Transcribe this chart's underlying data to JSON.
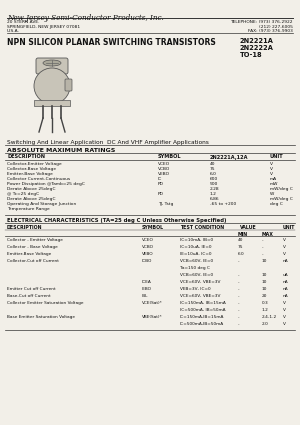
{
  "bg_color": "#f2efe8",
  "company_name": "New Jersey Semi-Conductor Products, Inc.",
  "address_line1": "20 STERN AVE.",
  "address_line2": "SPRINGFIELD, NEW JERSEY 07081",
  "address_line3": "U.S.A.",
  "phone_line1": "TELEPHONE: (973) 376-2922",
  "phone_line2": "(212) 227-6005",
  "phone_line3": "FAX: (973) 376-9903",
  "title": "NPN SILICON PLANAR SWITCHING TRANSISTORS",
  "part1": "2N2221A",
  "part2": "2N2222A",
  "part3": "TO-18",
  "subtitle": "Switching And Linear Application  DC And VHF Amplifier Applications",
  "abs_max_title": "ABSOLUTE MAXIMUM RATINGS",
  "abs_col1": "DESCRIPTION",
  "abs_col2": "SYMBOL",
  "abs_col3": "2N2221A,12A",
  "abs_col4": "UNIT",
  "abs_rows": [
    [
      "Collector-Emitter Voltage",
      "VCEO",
      "40",
      "V"
    ],
    [
      "Collector-Base Voltage",
      "VCBO",
      "75",
      "V"
    ],
    [
      "Emitter-Base Voltage",
      "VEBO",
      "6.0",
      "V"
    ],
    [
      "Collector Current-Continuous",
      "IC",
      "600",
      "mA"
    ],
    [
      "Power Dissipation @Tamb=25 degC",
      "PD",
      "500",
      "mW"
    ],
    [
      "Derate Above 25degC",
      "",
      "2.28",
      "mW/deg C"
    ],
    [
      "@ Tc=25 degC",
      "PD",
      "1.2",
      "W"
    ],
    [
      "Derate Above 25degC",
      "",
      "6.86",
      "mW/deg C"
    ],
    [
      "Operating And Storage Junction",
      "TJ, Tstg",
      "-65 to +200",
      "deg C"
    ],
    [
      "Temperature Range",
      "",
      "",
      ""
    ]
  ],
  "elec_title": "ELECTRICAL CHARACTERISTICS (TA=25 deg C Unless Otherwise Specified)",
  "elec_rows": [
    [
      "Collector - Emitter Voltage",
      "VCEO",
      "IC=10mA, IB=0",
      "40",
      "-",
      "V"
    ],
    [
      "Collector - Base Voltage",
      "VCBO",
      "IC=10uA, IE=0",
      "75",
      "-",
      "V"
    ],
    [
      "Emitter-Base Voltage",
      "VEBO",
      "IE=10uA, IC=0",
      "6.0",
      "-",
      "V"
    ],
    [
      "Collector-Cut off Current",
      "ICBO",
      "VCB=60V, IE=0",
      "-",
      "10",
      "nA"
    ],
    [
      "",
      "",
      "Ta=150 deg C",
      "",
      "",
      ""
    ],
    [
      "",
      "",
      "VCB=60V, IE=0",
      "-",
      "10",
      "uA"
    ],
    [
      "",
      "ICEA",
      "VCE=60V, VBE=3V",
      "-",
      "10",
      "nA"
    ],
    [
      "Emitter Cut off Current",
      "IEBO",
      "VEB=3V, IC=0",
      "-",
      "10",
      "nA"
    ],
    [
      "Base-Cut off Current",
      "IBL",
      "VCE=60V, VBE=3V",
      "-",
      "20",
      "nA"
    ],
    [
      "Collector Emitter Saturation Voltage",
      "VCE(Sat)*",
      "IC=150mA, IB=15mA",
      "-",
      "0.3",
      "V"
    ],
    [
      "",
      "",
      "IC=500mA, IB=50mA",
      "-",
      "1.2",
      "V"
    ],
    [
      "Base Emitter Saturation Voltage",
      "VBE(Sat)*",
      "IC=150mA,IB=15mA",
      "-",
      "2.4-1.2",
      "V"
    ],
    [
      "",
      "",
      "IC=500mA,IB=50mA",
      "-",
      "2.0",
      "V"
    ]
  ]
}
